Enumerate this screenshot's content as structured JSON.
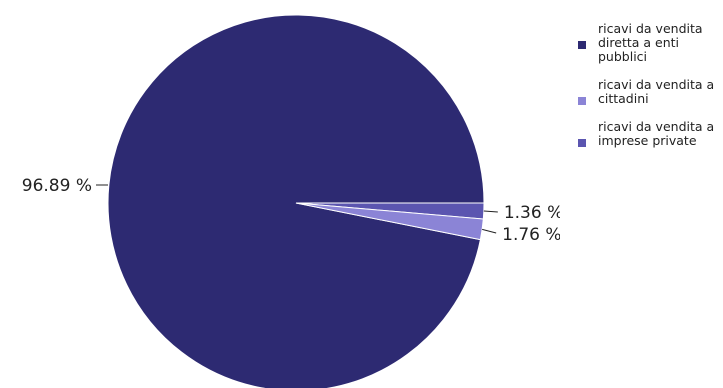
{
  "chart_data": {
    "type": "pie",
    "title": "",
    "slices": [
      {
        "name": "ricavi da vendita diretta a enti pubblici",
        "value": 96.89,
        "label": "96.89 %",
        "color": "#2d2a72"
      },
      {
        "name": "ricavi da vendita a cittadini",
        "value": 1.76,
        "label": "1.76 %",
        "color": "#8b84d6"
      },
      {
        "name": "ricavi da vendita a imprese private",
        "value": 1.36,
        "label": "1.36 %",
        "color": "#5b55b0"
      }
    ],
    "slice_border_color": "#ffffff",
    "legend_position": "right"
  },
  "legend": {
    "items": [
      {
        "label": "ricavi da vendita diretta a enti pubblici",
        "color": "#2d2a72"
      },
      {
        "label": "ricavi da vendita a cittadini",
        "color": "#8b84d6"
      },
      {
        "label": "ricavi da vendita a imprese private",
        "color": "#5b55b0"
      }
    ]
  }
}
